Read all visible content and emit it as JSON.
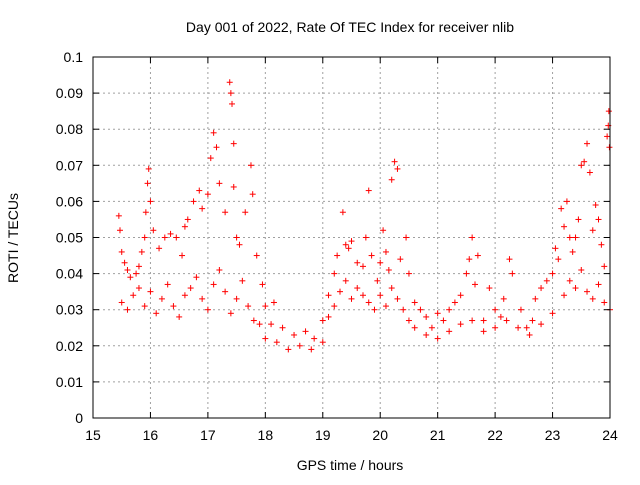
{
  "chart_data": {
    "type": "scatter",
    "title": "Day 001 of 2022, Rate Of TEC Index for receiver nlib",
    "xlabel": "GPS time / hours",
    "ylabel": "ROTI / TECUs",
    "xlim": [
      15,
      24
    ],
    "ylim": [
      0,
      0.1
    ],
    "x_ticks": [
      "15",
      "16",
      "17",
      "18",
      "19",
      "20",
      "21",
      "22",
      "23",
      "24"
    ],
    "y_ticks": [
      "0",
      "0.01",
      "0.02",
      "0.03",
      "0.04",
      "0.05",
      "0.06",
      "0.07",
      "0.08",
      "0.09",
      "0.1"
    ],
    "grid": true,
    "marker": "plus",
    "color": "#ff0000",
    "legend": "none",
    "series": [
      {
        "points": [
          [
            15.45,
            0.056
          ],
          [
            15.47,
            0.052
          ],
          [
            15.5,
            0.046
          ],
          [
            15.55,
            0.043
          ],
          [
            15.6,
            0.041
          ],
          [
            15.65,
            0.039
          ],
          [
            15.75,
            0.04
          ],
          [
            15.8,
            0.042
          ],
          [
            15.85,
            0.046
          ],
          [
            15.9,
            0.05
          ],
          [
            15.92,
            0.057
          ],
          [
            15.95,
            0.065
          ],
          [
            15.97,
            0.069
          ],
          [
            16.0,
            0.06
          ],
          [
            16.05,
            0.052
          ],
          [
            16.15,
            0.047
          ],
          [
            16.25,
            0.05
          ],
          [
            16.35,
            0.051
          ],
          [
            16.45,
            0.05
          ],
          [
            16.55,
            0.045
          ],
          [
            16.6,
            0.053
          ],
          [
            16.65,
            0.055
          ],
          [
            16.75,
            0.06
          ],
          [
            16.85,
            0.063
          ],
          [
            16.9,
            0.058
          ],
          [
            17.0,
            0.062
          ],
          [
            17.05,
            0.072
          ],
          [
            17.1,
            0.079
          ],
          [
            17.15,
            0.075
          ],
          [
            17.2,
            0.065
          ],
          [
            17.3,
            0.057
          ],
          [
            17.38,
            0.093
          ],
          [
            17.4,
            0.09
          ],
          [
            17.42,
            0.087
          ],
          [
            17.45,
            0.076
          ],
          [
            17.45,
            0.064
          ],
          [
            17.5,
            0.05
          ],
          [
            17.55,
            0.048
          ],
          [
            17.65,
            0.057
          ],
          [
            17.75,
            0.07
          ],
          [
            17.78,
            0.062
          ],
          [
            17.85,
            0.045
          ],
          [
            17.95,
            0.037
          ],
          [
            18.0,
            0.031
          ],
          [
            18.1,
            0.026
          ],
          [
            18.15,
            0.032
          ],
          [
            18.3,
            0.025
          ],
          [
            18.5,
            0.023
          ],
          [
            18.7,
            0.024
          ],
          [
            18.85,
            0.022
          ],
          [
            19.0,
            0.027
          ],
          [
            19.1,
            0.034
          ],
          [
            19.2,
            0.04
          ],
          [
            19.25,
            0.045
          ],
          [
            19.35,
            0.057
          ],
          [
            19.4,
            0.048
          ],
          [
            19.45,
            0.047
          ],
          [
            19.5,
            0.049
          ],
          [
            19.6,
            0.043
          ],
          [
            19.7,
            0.042
          ],
          [
            19.75,
            0.05
          ],
          [
            19.8,
            0.063
          ],
          [
            19.85,
            0.045
          ],
          [
            19.95,
            0.038
          ],
          [
            20.0,
            0.043
          ],
          [
            20.05,
            0.052
          ],
          [
            20.1,
            0.046
          ],
          [
            20.15,
            0.041
          ],
          [
            20.2,
            0.066
          ],
          [
            20.25,
            0.071
          ],
          [
            20.3,
            0.069
          ],
          [
            20.35,
            0.044
          ],
          [
            20.45,
            0.05
          ],
          [
            20.5,
            0.04
          ],
          [
            20.6,
            0.032
          ],
          [
            20.7,
            0.03
          ],
          [
            20.8,
            0.028
          ],
          [
            20.9,
            0.025
          ],
          [
            21.0,
            0.029
          ],
          [
            21.1,
            0.027
          ],
          [
            21.2,
            0.03
          ],
          [
            21.3,
            0.032
          ],
          [
            21.4,
            0.034
          ],
          [
            21.5,
            0.04
          ],
          [
            21.55,
            0.044
          ],
          [
            21.6,
            0.05
          ],
          [
            21.65,
            0.037
          ],
          [
            21.7,
            0.045
          ],
          [
            21.8,
            0.027
          ],
          [
            21.9,
            0.036
          ],
          [
            22.0,
            0.03
          ],
          [
            22.1,
            0.028
          ],
          [
            22.15,
            0.033
          ],
          [
            22.25,
            0.044
          ],
          [
            22.3,
            0.04
          ],
          [
            22.45,
            0.03
          ],
          [
            22.55,
            0.025
          ],
          [
            22.65,
            0.027
          ],
          [
            22.7,
            0.033
          ],
          [
            22.8,
            0.036
          ],
          [
            22.9,
            0.038
          ],
          [
            23.0,
            0.04
          ],
          [
            23.05,
            0.047
          ],
          [
            23.1,
            0.044
          ],
          [
            23.15,
            0.058
          ],
          [
            23.2,
            0.053
          ],
          [
            23.25,
            0.06
          ],
          [
            23.3,
            0.05
          ],
          [
            23.35,
            0.046
          ],
          [
            23.4,
            0.05
          ],
          [
            23.45,
            0.055
          ],
          [
            23.5,
            0.07
          ],
          [
            23.55,
            0.071
          ],
          [
            23.6,
            0.076
          ],
          [
            23.65,
            0.068
          ],
          [
            23.7,
            0.052
          ],
          [
            23.75,
            0.059
          ],
          [
            23.8,
            0.055
          ],
          [
            23.85,
            0.048
          ],
          [
            23.9,
            0.042
          ],
          [
            23.95,
            0.078
          ],
          [
            23.97,
            0.081
          ],
          [
            23.98,
            0.085
          ],
          [
            23.99,
            0.075
          ],
          [
            15.5,
            0.032
          ],
          [
            15.6,
            0.03
          ],
          [
            15.7,
            0.034
          ],
          [
            15.8,
            0.036
          ],
          [
            15.9,
            0.031
          ],
          [
            16.0,
            0.035
          ],
          [
            16.1,
            0.029
          ],
          [
            16.2,
            0.033
          ],
          [
            16.3,
            0.037
          ],
          [
            16.4,
            0.031
          ],
          [
            16.5,
            0.028
          ],
          [
            16.6,
            0.034
          ],
          [
            16.7,
            0.036
          ],
          [
            16.8,
            0.039
          ],
          [
            16.9,
            0.033
          ],
          [
            17.0,
            0.03
          ],
          [
            17.1,
            0.037
          ],
          [
            17.2,
            0.041
          ],
          [
            17.3,
            0.035
          ],
          [
            17.4,
            0.029
          ],
          [
            17.5,
            0.033
          ],
          [
            17.6,
            0.038
          ],
          [
            17.7,
            0.031
          ],
          [
            17.8,
            0.027
          ],
          [
            17.9,
            0.026
          ],
          [
            18.0,
            0.022
          ],
          [
            18.2,
            0.021
          ],
          [
            18.4,
            0.019
          ],
          [
            18.6,
            0.02
          ],
          [
            18.8,
            0.019
          ],
          [
            19.0,
            0.021
          ],
          [
            19.1,
            0.028
          ],
          [
            19.2,
            0.031
          ],
          [
            19.3,
            0.035
          ],
          [
            19.4,
            0.038
          ],
          [
            19.5,
            0.033
          ],
          [
            19.6,
            0.036
          ],
          [
            19.7,
            0.034
          ],
          [
            19.8,
            0.032
          ],
          [
            19.9,
            0.03
          ],
          [
            20.0,
            0.034
          ],
          [
            20.1,
            0.031
          ],
          [
            20.2,
            0.036
          ],
          [
            20.3,
            0.033
          ],
          [
            20.4,
            0.03
          ],
          [
            20.5,
            0.027
          ],
          [
            20.6,
            0.025
          ],
          [
            20.8,
            0.023
          ],
          [
            21.0,
            0.022
          ],
          [
            21.2,
            0.024
          ],
          [
            21.4,
            0.026
          ],
          [
            21.6,
            0.027
          ],
          [
            21.8,
            0.024
          ],
          [
            22.0,
            0.025
          ],
          [
            22.2,
            0.027
          ],
          [
            22.4,
            0.025
          ],
          [
            22.6,
            0.023
          ],
          [
            22.8,
            0.026
          ],
          [
            23.0,
            0.029
          ],
          [
            23.2,
            0.034
          ],
          [
            23.3,
            0.038
          ],
          [
            23.4,
            0.036
          ],
          [
            23.5,
            0.041
          ],
          [
            23.6,
            0.035
          ],
          [
            23.7,
            0.033
          ],
          [
            23.8,
            0.037
          ],
          [
            23.9,
            0.032
          ],
          [
            24.0,
            0.03
          ]
        ]
      }
    ]
  }
}
